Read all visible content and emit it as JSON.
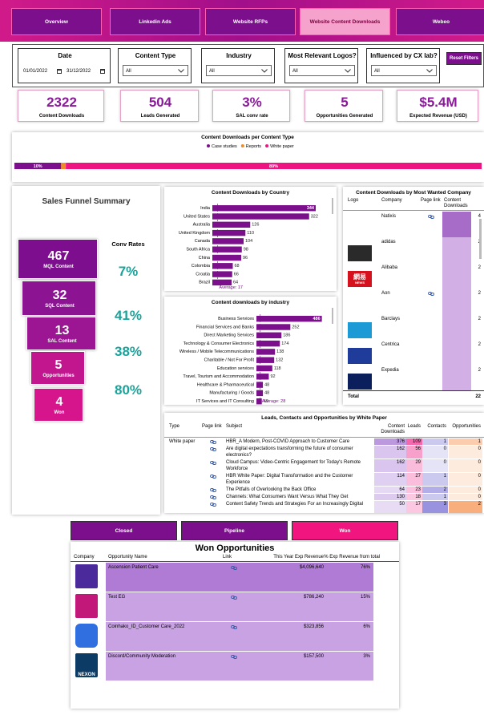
{
  "nav": {
    "tabs": [
      "Overview",
      "Linkedin Ads",
      "Website RFPs",
      "Website Content Downloads",
      "Webeo"
    ],
    "active_tab": 3
  },
  "filters": {
    "date": {
      "label": "Date",
      "start": "01/01/2022",
      "end": "31/12/2022"
    },
    "dropdowns": [
      {
        "label": "Content Type",
        "value": "All"
      },
      {
        "label": "Industry",
        "value": "All"
      },
      {
        "label": "Most Relevant Logos?",
        "value": "All"
      },
      {
        "label": "Influenced by CX lab?",
        "value": "All"
      }
    ],
    "reset_button": "Reset Filters"
  },
  "kpis": [
    {
      "value": "2322",
      "label": "Content Downloads"
    },
    {
      "value": "504",
      "label": "Leads Generated"
    },
    {
      "value": "3%",
      "label": "SAL conv rate"
    },
    {
      "value": "5",
      "label": "Opportunities Generated"
    },
    {
      "value": "$5.4M",
      "label": "Expected Revenue (USD)"
    }
  ],
  "content_type_chart": {
    "type": "bar",
    "stacked": true,
    "orientation": "horizontal",
    "title": "Content Downloads per Content Type",
    "xlim": [
      0,
      100
    ],
    "series": [
      {
        "name": "Case studies",
        "color": "#7b0f8c",
        "values": [
          10
        ],
        "value_labels": [
          "10%"
        ]
      },
      {
        "name": "Reports",
        "color": "#f08a24",
        "values": [
          1
        ]
      },
      {
        "name": "White paper",
        "color": "#ee1582",
        "values": [
          89
        ],
        "value_labels": [
          "89%"
        ]
      }
    ]
  },
  "funnel": {
    "title": "Sales Funnel Summary",
    "conv_title": "Conv Rates",
    "stages": [
      {
        "value": "467",
        "label": "MQL Content"
      },
      {
        "value": "32",
        "label": "SQL Content"
      },
      {
        "value": "13",
        "label": "SAL Content"
      },
      {
        "value": "5",
        "label": "Opportunities"
      },
      {
        "value": "4",
        "label": "Won"
      }
    ],
    "conv_rates": [
      "7%",
      "41%",
      "38%",
      "80%"
    ]
  },
  "country_chart": {
    "type": "bar",
    "orientation": "horizontal",
    "title": "Content Downloads by Country",
    "categories": [
      "India",
      "United States",
      "Australia",
      "United Kingdom",
      "Canada",
      "South Africa",
      "China",
      "Colombia",
      "Croatia",
      "Brazil"
    ],
    "values": [
      344,
      322,
      126,
      110,
      104,
      98,
      96,
      68,
      66,
      64
    ],
    "color": "#7b0f8c",
    "xlim": [
      0,
      360
    ],
    "average": {
      "value": 17,
      "label": "Average: 17"
    }
  },
  "industry_chart": {
    "type": "bar",
    "orientation": "horizontal",
    "title": "Content downloads by industry",
    "categories": [
      "Business Services",
      "Financial Services and Banks",
      "Direct Marketing Services",
      "Technology & Consumer Electronics",
      "Wireless / Mobile Telecommunications",
      "Charitable / Not For Profit",
      "Education services",
      "Travel, Tourism and Accommodation",
      "Healthcare & Pharmaceutical",
      "Manufacturing / Goods",
      "IT Services and IT Consulting"
    ],
    "values": [
      486,
      252,
      186,
      174,
      138,
      132,
      118,
      92,
      48,
      48,
      40
    ],
    "color": "#7b0f8c",
    "xlim": [
      0,
      500
    ],
    "average": {
      "value": 28,
      "label": "Average: 28"
    }
  },
  "company_table": {
    "title": "Content Downloads by Most Wanted Company",
    "columns": [
      "Logo",
      "Company",
      "Page link",
      "Content Downloads"
    ],
    "rows": [
      {
        "company": "Natixis",
        "downloads": "4",
        "link": true
      },
      {
        "company": "adidas",
        "downloads": "2",
        "logo": "#2a2a2a"
      },
      {
        "company": "Alibaba",
        "downloads": "2",
        "logo": "#d6111e",
        "logo_text": [
          "網易",
          "NEWS"
        ]
      },
      {
        "company": "Aon",
        "downloads": "2",
        "link": true
      },
      {
        "company": "Barclays",
        "downloads": "2",
        "logo": "#1c9ad6"
      },
      {
        "company": "Centrica",
        "downloads": "2",
        "logo": "#1f3c9b"
      },
      {
        "company": "Expedia",
        "downloads": "2",
        "logo": "#0a1f5c"
      }
    ],
    "total_label": "Total",
    "total": "22"
  },
  "leads_table": {
    "title": "Leads, Contacts and Opportunities by White Paper",
    "columns": [
      "Type",
      "Page link",
      "Subject",
      "Content Downloads",
      "Leads",
      "Contacts",
      "Opportunities"
    ],
    "rows": [
      {
        "type": "White paper",
        "subject": "HBR_A Modern, Post-COVID Approach to Customer Care",
        "downloads": "376",
        "leads": "109",
        "contacts": "1",
        "opportunities": "1"
      },
      {
        "subject": "Are digital expectations transforming the future of consumer electronics?",
        "downloads": "162",
        "leads": "56",
        "contacts": "0",
        "opportunities": "0"
      },
      {
        "subject": "Cloud Campus: Video-Centric Engagement for Today's Remote Workforce",
        "downloads": "162",
        "leads": "29",
        "contacts": "0",
        "opportunities": "0"
      },
      {
        "subject": "HBR White Paper: Digital Transformation and the Customer Experience",
        "downloads": "114",
        "leads": "27",
        "contacts": "1",
        "opportunities": "0"
      },
      {
        "subject": "The Pitfalls of Overlooking the Back Office",
        "downloads": "64",
        "leads": "23",
        "contacts": "2",
        "opportunities": "0"
      },
      {
        "subject": "Channels: What Consumers Want Versus What They Get",
        "downloads": "130",
        "leads": "18",
        "contacts": "1",
        "opportunities": "0"
      },
      {
        "subject": "Content Safety Trends and Strategies For an Increasingly Digital",
        "downloads": "50",
        "leads": "17",
        "contacts": "3",
        "opportunities": "2"
      }
    ]
  },
  "won_tabs": {
    "tabs": [
      "Closed",
      "Pipeline",
      "Won"
    ],
    "active_tab": 2
  },
  "won_table": {
    "title": "Won Opportunities",
    "columns": [
      "Company",
      "Opportunity Name",
      "Link",
      "This Year Exp Revenue",
      "% Exp Revenue from total"
    ],
    "rows": [
      {
        "name": "Ascension Patient Care",
        "revenue": "$4,096,640",
        "share": "76%",
        "logo": "#4b2a9c"
      },
      {
        "name": "Test EG",
        "revenue": "$786,240",
        "share": "15%",
        "logo": "#c2187a"
      },
      {
        "name": "Coinhako_ID_Customer Care_2022",
        "revenue": "$323,856",
        "share": "6%",
        "logo": "#2f6fe0"
      },
      {
        "name": "Discord/Community Moderation",
        "revenue": "$157,500",
        "share": "3%",
        "logo": "#0c3b66",
        "logo_text": "NEXON"
      }
    ]
  }
}
